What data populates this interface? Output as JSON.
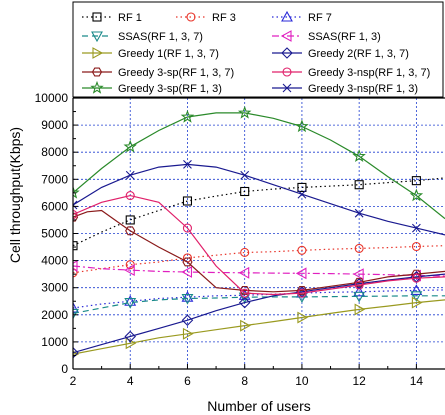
{
  "chart_data": {
    "type": "line",
    "xlabel": "Number of users",
    "ylabel": "Cell throughput(Kbps)",
    "xlim": [
      2,
      15
    ],
    "ylim": [
      0,
      10000
    ],
    "xticks": [
      2,
      4,
      6,
      8,
      10,
      12,
      14
    ],
    "yticks": [
      0,
      1000,
      2000,
      3000,
      4000,
      5000,
      6000,
      7000,
      8000,
      9000,
      10000
    ],
    "grid": "dotted",
    "legend_position": "top",
    "series": [
      {
        "name": "RF 1",
        "color": "#000000",
        "line": "dotted",
        "marker": "square",
        "points": [
          [
            2,
            4550
          ],
          [
            3,
            5050
          ],
          [
            4,
            5500
          ],
          [
            5,
            5850
          ],
          [
            6,
            6200
          ],
          [
            7,
            6380
          ],
          [
            8,
            6550
          ],
          [
            9,
            6640
          ],
          [
            10,
            6700
          ],
          [
            11,
            6750
          ],
          [
            12,
            6800
          ],
          [
            13,
            6880
          ],
          [
            14,
            6950
          ],
          [
            15,
            7050
          ]
        ],
        "marker_x": [
          2,
          4,
          6,
          8,
          10,
          12,
          14
        ]
      },
      {
        "name": "RF 3",
        "color": "#e8342a",
        "line": "dotted",
        "marker": "circle",
        "points": [
          [
            2,
            3550
          ],
          [
            3,
            3700
          ],
          [
            4,
            3850
          ],
          [
            5,
            3950
          ],
          [
            6,
            4100
          ],
          [
            7,
            4200
          ],
          [
            8,
            4300
          ],
          [
            9,
            4330
          ],
          [
            10,
            4380
          ],
          [
            11,
            4420
          ],
          [
            12,
            4450
          ],
          [
            13,
            4480
          ],
          [
            14,
            4520
          ],
          [
            15,
            4550
          ]
        ],
        "marker_x": [
          2,
          4,
          6,
          8,
          10,
          12,
          14
        ]
      },
      {
        "name": "RF 7",
        "color": "#2a2ad8",
        "line": "dotted",
        "marker": "triangle-up",
        "points": [
          [
            2,
            2250
          ],
          [
            3,
            2400
          ],
          [
            4,
            2500
          ],
          [
            5,
            2600
          ],
          [
            6,
            2650
          ],
          [
            7,
            2700
          ],
          [
            8,
            2720
          ],
          [
            9,
            2760
          ],
          [
            10,
            2800
          ],
          [
            11,
            2830
          ],
          [
            12,
            2850
          ],
          [
            13,
            2880
          ],
          [
            14,
            2900
          ],
          [
            15,
            2920
          ]
        ],
        "marker_x": [
          2,
          4,
          6,
          8,
          10,
          12,
          14
        ]
      },
      {
        "name": "SSAS(RF 1, 3, 7)",
        "color": "#1a8a8a",
        "line": "dashed",
        "marker": "triangle-down",
        "points": [
          [
            2,
            2050
          ],
          [
            3,
            2250
          ],
          [
            4,
            2450
          ],
          [
            5,
            2550
          ],
          [
            6,
            2600
          ],
          [
            7,
            2620
          ],
          [
            8,
            2650
          ],
          [
            9,
            2660
          ],
          [
            10,
            2660
          ],
          [
            11,
            2670
          ],
          [
            12,
            2680
          ],
          [
            13,
            2690
          ],
          [
            14,
            2700
          ],
          [
            15,
            2700
          ]
        ],
        "marker_x": [
          2,
          4,
          6,
          8,
          10,
          12,
          14
        ]
      },
      {
        "name": "SSAS(RF 1, 3)",
        "color": "#e020c0",
        "line": "dashdot",
        "marker": "triangle-left",
        "points": [
          [
            2,
            3800
          ],
          [
            3,
            3700
          ],
          [
            4,
            3650
          ],
          [
            5,
            3600
          ],
          [
            6,
            3580
          ],
          [
            7,
            3560
          ],
          [
            8,
            3550
          ],
          [
            9,
            3540
          ],
          [
            10,
            3530
          ],
          [
            11,
            3520
          ],
          [
            12,
            3500
          ],
          [
            13,
            3480
          ],
          [
            14,
            3450
          ],
          [
            15,
            3430
          ]
        ],
        "marker_x": [
          2,
          4,
          6,
          8,
          10,
          12,
          14
        ]
      },
      {
        "name": "Greedy 1(RF 1, 3, 7)",
        "color": "#9a9a20",
        "line": "solid",
        "marker": "triangle-right",
        "points": [
          [
            2,
            550
          ],
          [
            3,
            750
          ],
          [
            4,
            950
          ],
          [
            5,
            1150
          ],
          [
            6,
            1300
          ],
          [
            7,
            1450
          ],
          [
            8,
            1600
          ],
          [
            9,
            1750
          ],
          [
            10,
            1900
          ],
          [
            11,
            2050
          ],
          [
            12,
            2200
          ],
          [
            13,
            2320
          ],
          [
            14,
            2450
          ],
          [
            15,
            2550
          ]
        ],
        "marker_x": [
          2,
          4,
          6,
          8,
          10,
          12,
          14
        ]
      },
      {
        "name": "Greedy 2(RF 1, 3, 7)",
        "color": "#1a1a90",
        "line": "solid",
        "marker": "diamond",
        "points": [
          [
            2,
            600
          ],
          [
            3,
            900
          ],
          [
            4,
            1200
          ],
          [
            5,
            1500
          ],
          [
            6,
            1800
          ],
          [
            7,
            2150
          ],
          [
            8,
            2450
          ],
          [
            9,
            2700
          ],
          [
            10,
            2850
          ],
          [
            11,
            3000
          ],
          [
            12,
            3150
          ],
          [
            13,
            3280
          ],
          [
            14,
            3400
          ],
          [
            15,
            3500
          ]
        ],
        "marker_x": [
          2,
          4,
          6,
          8,
          10,
          12,
          14
        ]
      },
      {
        "name": "Greedy 3-sp(RF 1, 3, 7)",
        "color": "#8a1a1a",
        "line": "solid",
        "marker": "hexagon",
        "points": [
          [
            2,
            5600
          ],
          [
            2.5,
            5800
          ],
          [
            3,
            5850
          ],
          [
            4,
            5100
          ],
          [
            5,
            4500
          ],
          [
            6,
            3950
          ],
          [
            7,
            3000
          ],
          [
            8,
            2900
          ],
          [
            9,
            2850
          ],
          [
            10,
            2900
          ],
          [
            11,
            3050
          ],
          [
            12,
            3200
          ],
          [
            13,
            3400
          ],
          [
            14,
            3500
          ],
          [
            15,
            3600
          ]
        ],
        "marker_x": [
          2,
          4,
          6,
          8,
          10,
          12,
          14
        ]
      },
      {
        "name": "Greedy 3-nsp(RF 1, 3, 7)",
        "color": "#e0206a",
        "line": "solid",
        "marker": "circle-open",
        "points": [
          [
            2,
            5700
          ],
          [
            3,
            6150
          ],
          [
            4,
            6400
          ],
          [
            5,
            6150
          ],
          [
            6,
            5200
          ],
          [
            7,
            3800
          ],
          [
            8,
            2800
          ],
          [
            9,
            2750
          ],
          [
            10,
            2800
          ],
          [
            11,
            2950
          ],
          [
            12,
            3100
          ],
          [
            13,
            3250
          ],
          [
            14,
            3350
          ],
          [
            15,
            3400
          ]
        ],
        "marker_x": [
          2,
          4,
          6,
          8,
          10,
          12,
          14
        ]
      },
      {
        "name": "Greedy 3-sp(RF 1, 3)",
        "color": "#2a8a2a",
        "line": "solid",
        "marker": "star",
        "points": [
          [
            2,
            6500
          ],
          [
            3,
            7400
          ],
          [
            4,
            8200
          ],
          [
            5,
            8800
          ],
          [
            6,
            9300
          ],
          [
            7,
            9450
          ],
          [
            8,
            9450
          ],
          [
            9,
            9250
          ],
          [
            10,
            8950
          ],
          [
            11,
            8450
          ],
          [
            12,
            7850
          ],
          [
            13,
            7100
          ],
          [
            14,
            6400
          ],
          [
            15,
            5550
          ]
        ],
        "marker_x": [
          2,
          4,
          6,
          8,
          10,
          12,
          14
        ]
      },
      {
        "name": "Greedy 3-nsp(RF 1, 3)",
        "color": "#1a1a90",
        "line": "solid",
        "marker": "x",
        "points": [
          [
            2,
            6050
          ],
          [
            3,
            6700
          ],
          [
            4,
            7150
          ],
          [
            5,
            7450
          ],
          [
            6,
            7550
          ],
          [
            7,
            7450
          ],
          [
            8,
            7150
          ],
          [
            9,
            6800
          ],
          [
            10,
            6450
          ],
          [
            11,
            6100
          ],
          [
            12,
            5750
          ],
          [
            13,
            5450
          ],
          [
            14,
            5200
          ],
          [
            15,
            4950
          ]
        ],
        "marker_x": [
          2,
          4,
          6,
          8,
          10,
          12,
          14
        ]
      }
    ]
  }
}
